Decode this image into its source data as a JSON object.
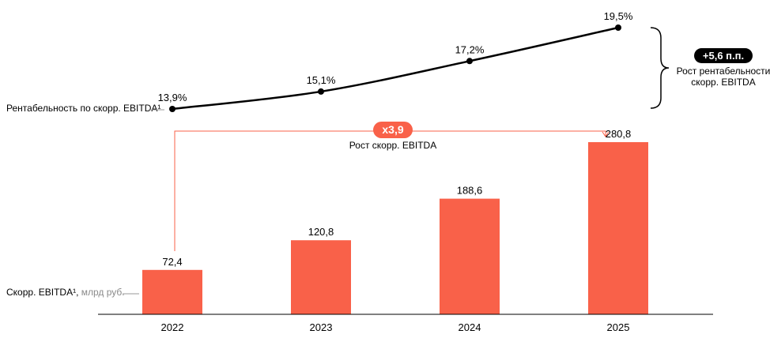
{
  "chart_data": [
    {
      "type": "line",
      "name": "margin",
      "label": "Рентабельность по скорр. EBITDA¹",
      "categories": [
        "2022",
        "2023",
        "2024",
        "2025"
      ],
      "values": [
        13.9,
        15.1,
        17.2,
        19.5
      ],
      "value_labels": [
        "13,9%",
        "15,1%",
        "17,2%",
        "19,5%"
      ],
      "unit": "%",
      "color": "#000000",
      "annotation": {
        "badge": "+5,6 п.п.",
        "text_line1": "Рост рентабельности",
        "text_line2": "скорр. EBITDA"
      }
    },
    {
      "type": "bar",
      "name": "ebitda",
      "label_main": "Скорр. EBITDA¹,",
      "label_unit": " млрд руб.",
      "categories": [
        "2022",
        "2023",
        "2024",
        "2025"
      ],
      "values": [
        72.4,
        120.8,
        188.6,
        280.8
      ],
      "value_labels": [
        "72,4",
        "120,8",
        "188,6",
        "280,8"
      ],
      "ylim": [
        0,
        280.8
      ],
      "color": "#f96149",
      "annotation": {
        "badge": "x3,9",
        "text": "Рост скорр. EBITDA"
      }
    }
  ]
}
